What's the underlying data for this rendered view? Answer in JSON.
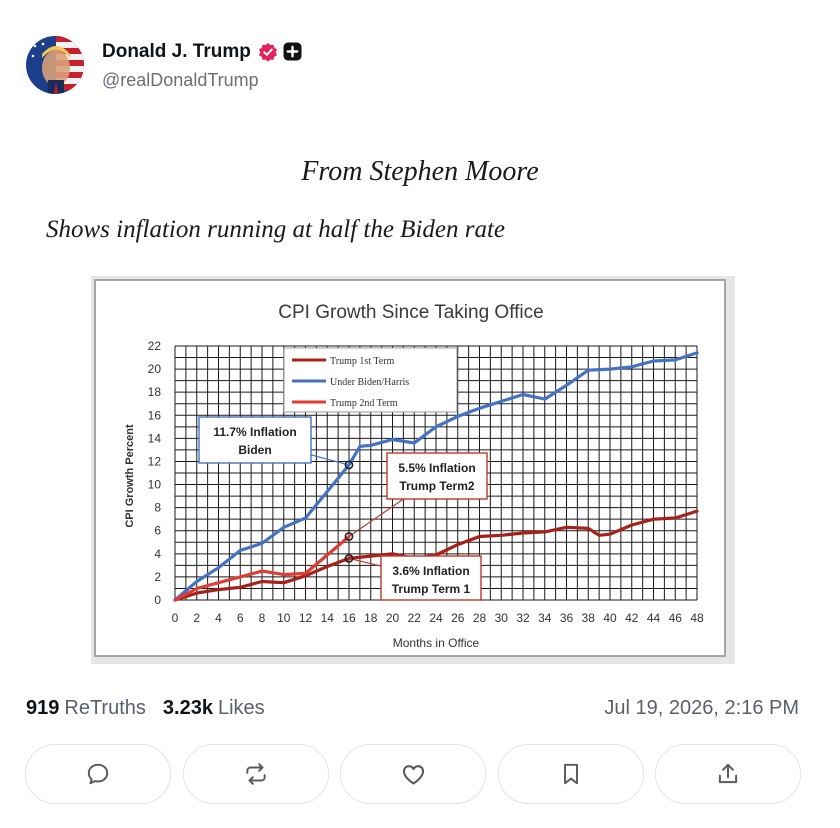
{
  "post": {
    "author": {
      "display_name": "Donald J. Trump",
      "handle": "@realDonaldTrump",
      "verified_color": "#e0245e"
    },
    "text_line1": "From Stephen Moore",
    "text_line2": "Shows inflation running at half the Biden rate",
    "stats": {
      "retruths_count": "919",
      "retruths_label": "ReTruths",
      "likes_count": "3.23k",
      "likes_label": "Likes"
    },
    "timestamp": "Jul 19, 2026, 2:16 PM",
    "actions": [
      {
        "name": "reply",
        "icon": "comment-icon"
      },
      {
        "name": "retruth",
        "icon": "repost-icon"
      },
      {
        "name": "like",
        "icon": "heart-icon"
      },
      {
        "name": "bookmark",
        "icon": "bookmark-icon"
      },
      {
        "name": "share",
        "icon": "share-icon"
      }
    ]
  },
  "chart_data": {
    "type": "line",
    "title": "CPI Growth Since Taking Office",
    "xlabel": "Months in Office",
    "ylabel": "CPI Growth Percent",
    "xlim": [
      0,
      48
    ],
    "ylim": [
      0,
      22
    ],
    "x_ticks": [
      0,
      2,
      4,
      6,
      8,
      10,
      12,
      14,
      16,
      18,
      20,
      22,
      24,
      26,
      28,
      30,
      32,
      34,
      36,
      38,
      40,
      42,
      44,
      46,
      48
    ],
    "y_ticks": [
      0,
      2,
      4,
      6,
      8,
      10,
      12,
      14,
      16,
      18,
      20,
      22
    ],
    "grid": true,
    "legend_position": "top-center",
    "series": [
      {
        "name": "Trump 1st Term",
        "color": "#a8201a",
        "x": [
          0,
          2,
          4,
          6,
          8,
          10,
          12,
          14,
          16,
          18,
          20,
          22,
          24,
          26,
          28,
          30,
          32,
          34,
          36,
          38,
          39,
          40,
          42,
          44,
          46,
          48
        ],
        "values": [
          0,
          0.6,
          0.9,
          1.1,
          1.6,
          1.5,
          2.1,
          2.9,
          3.6,
          3.8,
          4.0,
          3.6,
          3.9,
          4.8,
          5.5,
          5.6,
          5.8,
          5.9,
          6.3,
          6.2,
          5.6,
          5.7,
          6.5,
          7.0,
          7.1,
          7.7
        ]
      },
      {
        "name": "Under Biden/Harris",
        "color": "#4472c4",
        "x": [
          0,
          2,
          4,
          6,
          8,
          10,
          12,
          14,
          16,
          17,
          18,
          20,
          22,
          24,
          26,
          28,
          30,
          32,
          34,
          36,
          38,
          40,
          42,
          44,
          46,
          48
        ],
        "values": [
          0,
          1.6,
          2.8,
          4.3,
          4.9,
          6.3,
          7.1,
          9.4,
          11.7,
          13.3,
          13.4,
          13.9,
          13.6,
          15.0,
          15.9,
          16.6,
          17.2,
          17.8,
          17.4,
          18.6,
          19.9,
          20.0,
          20.2,
          20.7,
          20.8,
          21.4
        ]
      },
      {
        "name": "Trump 2nd Term",
        "color": "#e03c31",
        "x": [
          0,
          2,
          4,
          6,
          8,
          10,
          12,
          14,
          16
        ],
        "values": [
          0,
          1.0,
          1.5,
          2.0,
          2.5,
          2.2,
          2.3,
          3.9,
          5.5
        ]
      }
    ],
    "annotations": [
      {
        "line1": "11.7% Inflation",
        "line2": "Biden",
        "x": 16,
        "y": 11.7,
        "series": "Under Biden/Harris"
      },
      {
        "line1": "5.5% Inflation",
        "line2": "Trump Term2",
        "x": 16,
        "y": 5.5,
        "series": "Trump 2nd Term"
      },
      {
        "line1": "3.6% Inflation",
        "line2": "Trump Term 1",
        "x": 16,
        "y": 3.6,
        "series": "Trump 1st Term"
      }
    ]
  }
}
